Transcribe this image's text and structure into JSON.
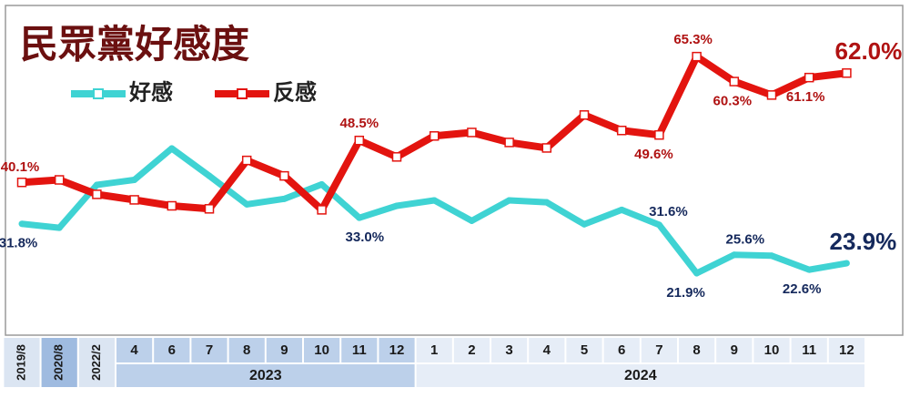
{
  "chart_data": {
    "type": "line",
    "title": "民眾黨好感度",
    "categories": [
      "2019/8",
      "2020/8",
      "2022/2",
      "4",
      "6",
      "7",
      "8",
      "9",
      "10",
      "11",
      "12",
      "1",
      "2",
      "3",
      "4",
      "5",
      "6",
      "7",
      "8",
      "9",
      "10",
      "11",
      "12"
    ],
    "groups": [
      {
        "label": "2023",
        "from": 3,
        "to": 10
      },
      {
        "label": "2024",
        "from": 11,
        "to": 22
      }
    ],
    "series": [
      {
        "name": "好感",
        "color": "#3fd3d3",
        "values": [
          31.8,
          31.0,
          39.6,
          40.6,
          46.9,
          41.4,
          35.7,
          36.8,
          39.7,
          33.0,
          35.4,
          36.5,
          32.4,
          36.5,
          36.1,
          31.7,
          34.6,
          31.6,
          21.9,
          25.6,
          25.4,
          22.6,
          23.9
        ],
        "value_labels": [
          "31.8%",
          null,
          null,
          null,
          null,
          null,
          null,
          null,
          null,
          "33.0%",
          null,
          null,
          null,
          null,
          null,
          null,
          null,
          "31.6%",
          "21.9%",
          "25.6%",
          null,
          "22.6%",
          "23.9%"
        ]
      },
      {
        "name": "反感",
        "color": "#e3140f",
        "values": [
          40.1,
          40.6,
          37.7,
          36.6,
          35.4,
          34.8,
          44.5,
          41.4,
          34.6,
          48.5,
          45.2,
          49.4,
          50.1,
          48.1,
          47.0,
          53.6,
          50.5,
          49.6,
          65.3,
          60.3,
          57.6,
          61.1,
          62.0
        ],
        "value_labels": [
          "40.1%",
          null,
          null,
          null,
          null,
          null,
          null,
          null,
          null,
          "48.5%",
          null,
          null,
          null,
          null,
          null,
          null,
          null,
          "49.6%",
          "65.3%",
          "60.3%",
          null,
          "61.1%",
          "62.0%"
        ]
      }
    ]
  }
}
